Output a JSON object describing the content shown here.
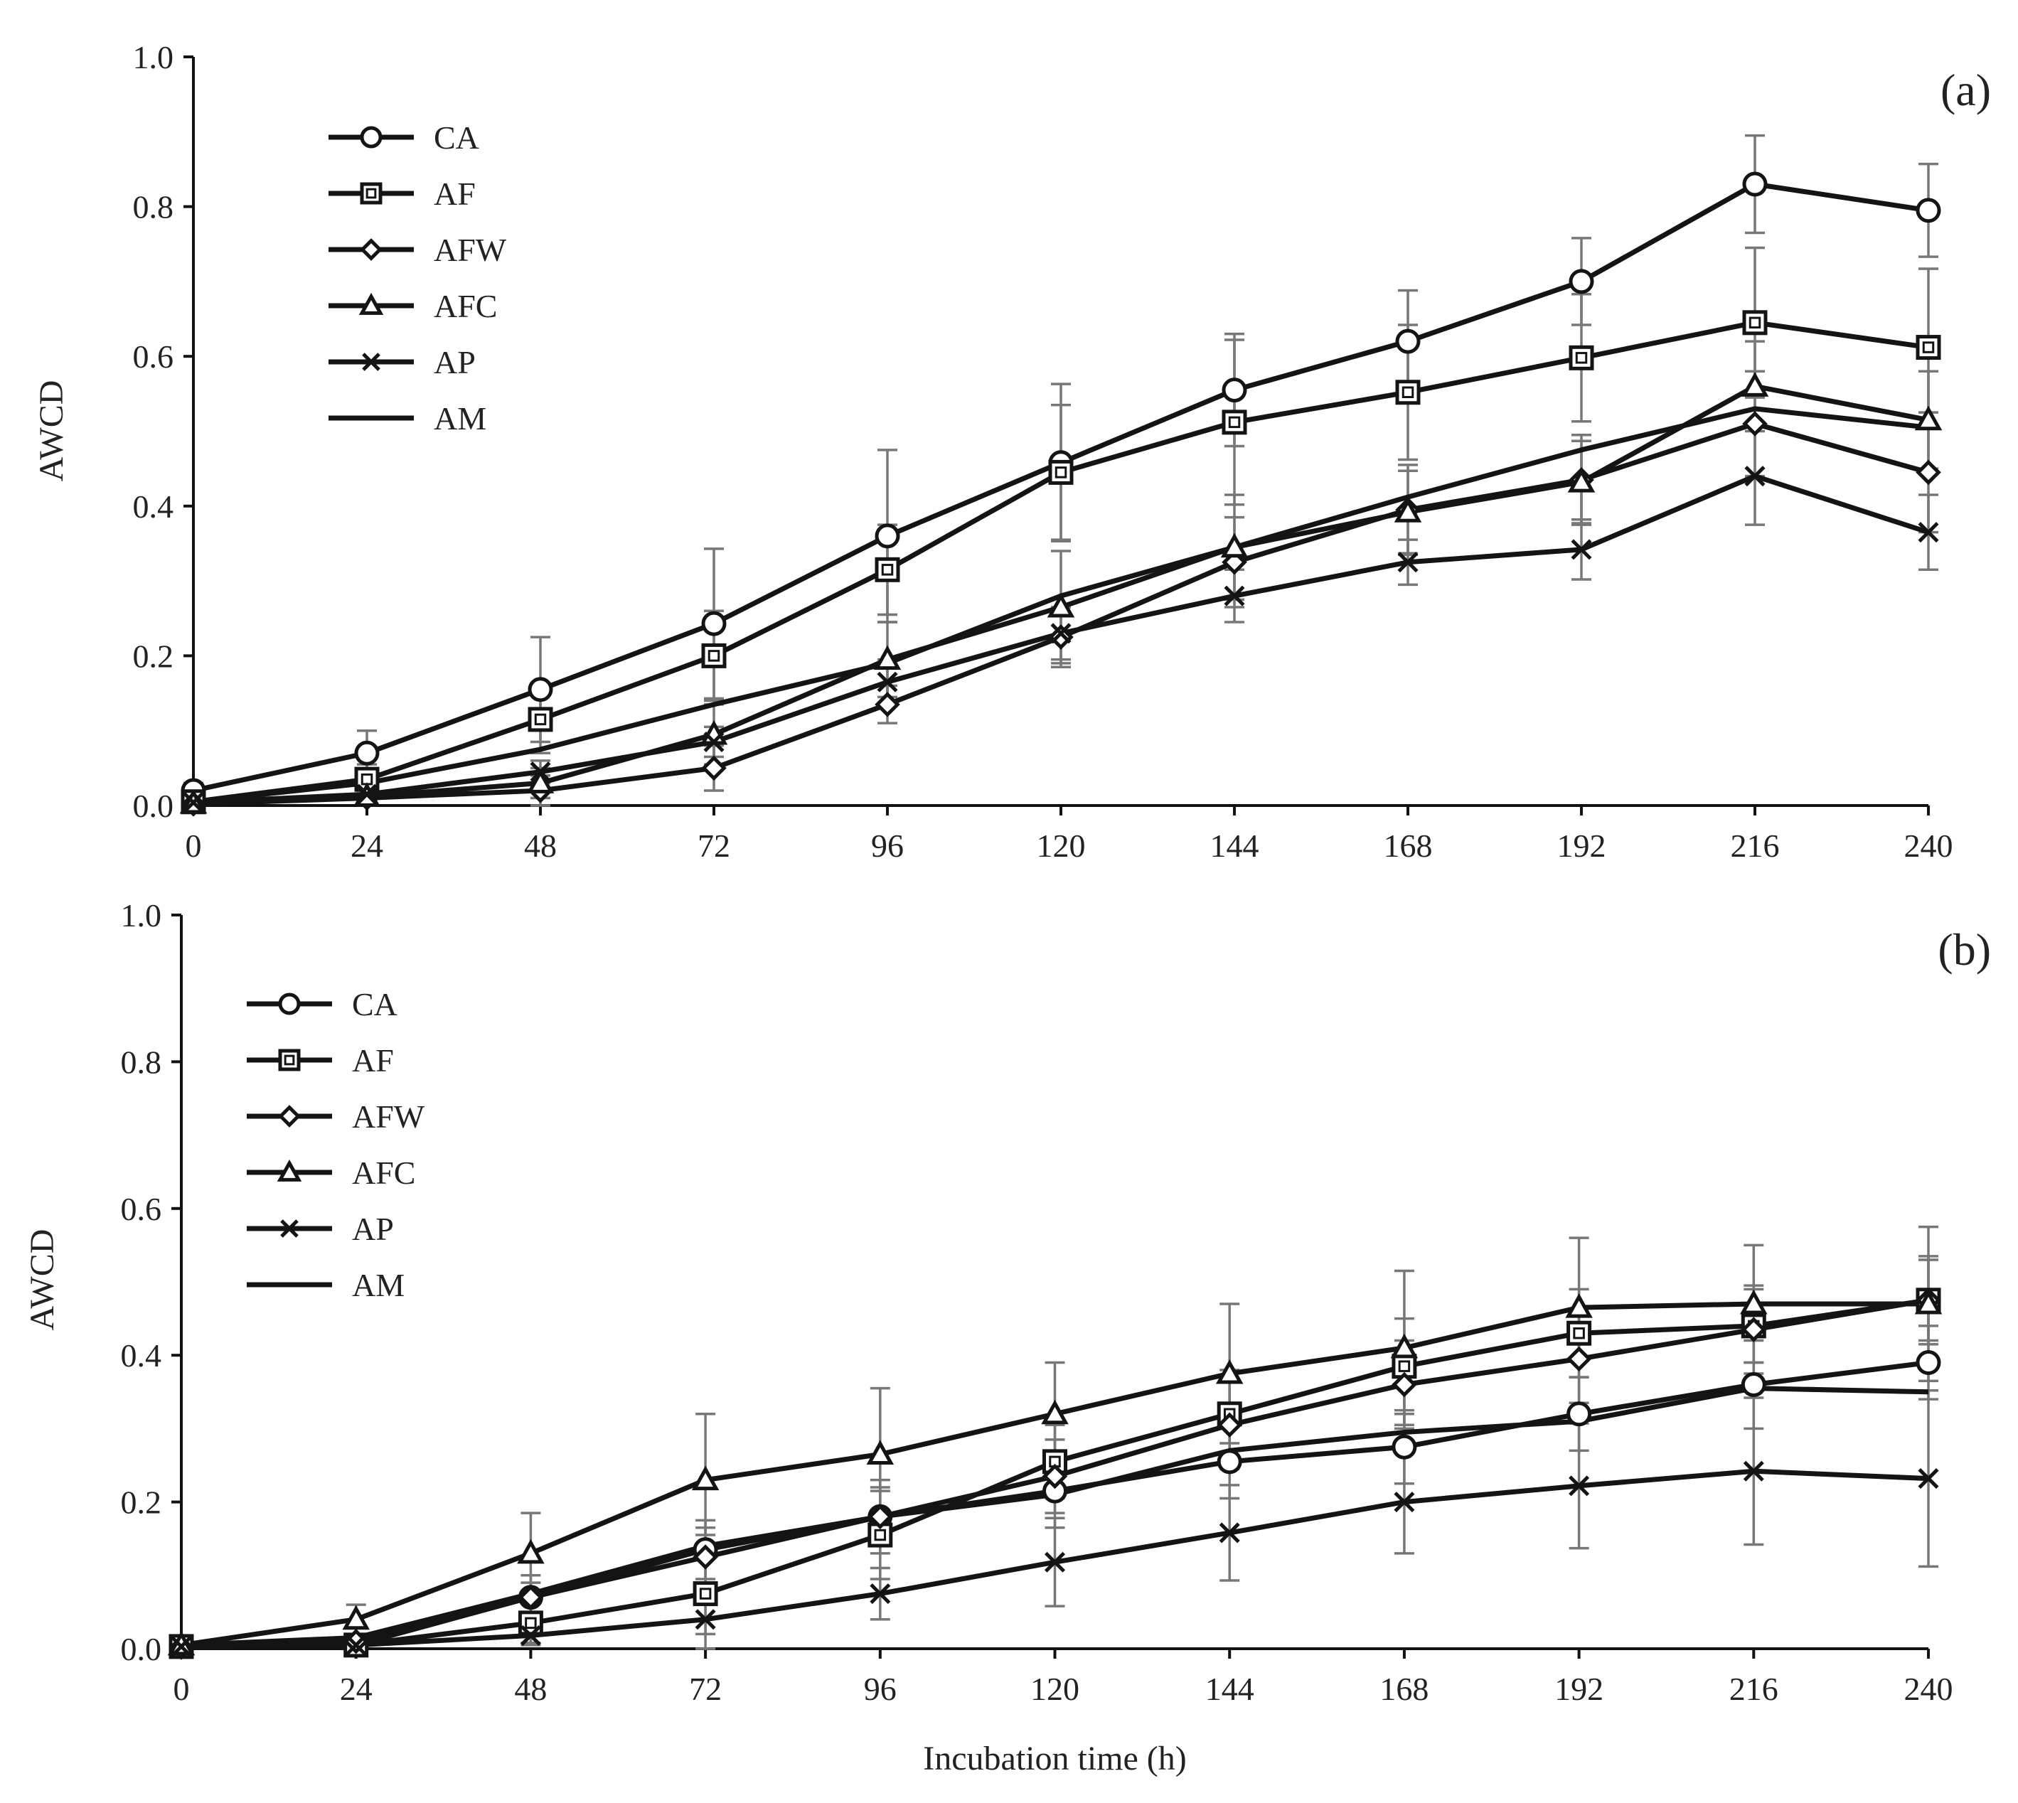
{
  "chart_data": [
    {
      "type": "line",
      "panel_label": "(a)",
      "ylabel": "AWCD",
      "xlabel": "",
      "ylim": [
        0.0,
        1.0
      ],
      "yticks": [
        "0.0",
        "0.2",
        "0.4",
        "0.6",
        "0.8",
        "1.0"
      ],
      "x": [
        0,
        24,
        48,
        72,
        96,
        120,
        144,
        168,
        192,
        216,
        240
      ],
      "xtick_labels": [
        "0",
        "24",
        "48",
        "72",
        "96",
        "120",
        "144",
        "168",
        "192",
        "216",
        "240"
      ],
      "legend_position": "top-left",
      "series": [
        {
          "name": "CA",
          "marker": "circle",
          "values": [
            0.02,
            0.07,
            0.155,
            0.243,
            0.36,
            0.458,
            0.555,
            0.62,
            0.7,
            0.83,
            0.795
          ],
          "errors": [
            0.01,
            0.03,
            0.07,
            0.1,
            0.115,
            0.105,
            0.075,
            0.068,
            0.058,
            0.065,
            0.062
          ]
        },
        {
          "name": "AF",
          "marker": "square",
          "values": [
            0.005,
            0.035,
            0.115,
            0.2,
            0.315,
            0.445,
            0.512,
            0.552,
            0.598,
            0.645,
            0.612
          ],
          "errors": [
            0.005,
            0.02,
            0.045,
            0.06,
            0.06,
            0.09,
            0.11,
            0.09,
            0.085,
            0.1,
            0.105
          ]
        },
        {
          "name": "AFW",
          "marker": "diamond",
          "values": [
            0.002,
            0.01,
            0.02,
            0.05,
            0.135,
            0.225,
            0.325,
            0.395,
            0.435,
            0.51,
            0.445
          ],
          "errors": [
            0.003,
            0.01,
            0.02,
            0.03,
            0.025,
            0.04,
            0.06,
            0.06,
            0.06,
            0.07,
            0.08
          ]
        },
        {
          "name": "AFC",
          "marker": "triangle",
          "values": [
            0.003,
            0.012,
            0.03,
            0.095,
            0.195,
            0.265,
            0.345,
            0.392,
            0.432,
            0.56,
            0.515
          ],
          "errors": [
            0.003,
            0.01,
            0.02,
            0.04,
            0.05,
            0.075,
            0.07,
            0.055,
            0.055,
            0.06,
            0.065
          ]
        },
        {
          "name": "AP",
          "marker": "x",
          "values": [
            0.004,
            0.015,
            0.045,
            0.085,
            0.165,
            0.23,
            0.28,
            0.325,
            0.342,
            0.44,
            0.365
          ],
          "errors": [
            0.003,
            0.01,
            0.015,
            0.02,
            0.03,
            0.035,
            0.035,
            0.03,
            0.04,
            0.065,
            0.05
          ]
        },
        {
          "name": "AM",
          "marker": "none",
          "values": [
            0.005,
            0.03,
            0.075,
            0.135,
            0.19,
            0.28,
            0.345,
            0.412,
            0.475,
            0.53,
            0.505
          ],
          "errors": []
        }
      ]
    },
    {
      "type": "line",
      "panel_label": "(b)",
      "ylabel": "AWCD",
      "xlabel": "Incubation time (h)",
      "ylim": [
        0.0,
        1.0
      ],
      "yticks": [
        "0.0",
        "0.2",
        "0.4",
        "0.6",
        "0.8",
        "1.0"
      ],
      "x": [
        0,
        24,
        48,
        72,
        96,
        120,
        144,
        168,
        192,
        216,
        240
      ],
      "xtick_labels": [
        "0",
        "24",
        "48",
        "72",
        "96",
        "120",
        "144",
        "168",
        "192",
        "216",
        "240"
      ],
      "legend_position": "top-left",
      "series": [
        {
          "name": "CA",
          "marker": "circle",
          "values": [
            0.003,
            0.005,
            0.07,
            0.135,
            0.18,
            0.215,
            0.255,
            0.275,
            0.32,
            0.36,
            0.39
          ],
          "errors": [
            0.003,
            0.005,
            0.02,
            0.04,
            0.04,
            0.05,
            0.05,
            0.05,
            0.05,
            0.06,
            0.05
          ]
        },
        {
          "name": "AF",
          "marker": "square",
          "values": [
            0.003,
            0.005,
            0.035,
            0.075,
            0.155,
            0.255,
            0.32,
            0.385,
            0.43,
            0.44,
            0.475
          ],
          "errors": [
            0.003,
            0.005,
            0.03,
            0.08,
            0.06,
            0.05,
            0.06,
            0.065,
            0.06,
            0.05,
            0.055
          ]
        },
        {
          "name": "AFW",
          "marker": "diamond",
          "values": [
            0.002,
            0.01,
            0.07,
            0.125,
            0.18,
            0.235,
            0.305,
            0.36,
            0.395,
            0.435,
            0.475
          ],
          "errors": [
            0.002,
            0.01,
            0.03,
            0.04,
            0.05,
            0.05,
            0.06,
            0.06,
            0.06,
            0.06,
            0.06
          ]
        },
        {
          "name": "AFC",
          "marker": "triangle",
          "values": [
            0.005,
            0.04,
            0.13,
            0.23,
            0.265,
            0.32,
            0.375,
            0.41,
            0.465,
            0.47,
            0.47
          ],
          "errors": [
            0.003,
            0.02,
            0.055,
            0.09,
            0.09,
            0.07,
            0.095,
            0.105,
            0.095,
            0.08,
            0.105
          ]
        },
        {
          "name": "AP",
          "marker": "x",
          "values": [
            0.003,
            0.005,
            0.018,
            0.04,
            0.075,
            0.118,
            0.158,
            0.2,
            0.222,
            0.242,
            0.232
          ],
          "errors": [
            0.003,
            0.005,
            0.01,
            0.02,
            0.035,
            0.06,
            0.065,
            0.07,
            0.085,
            0.1,
            0.12
          ]
        },
        {
          "name": "AM",
          "marker": "none",
          "values": [
            0.005,
            0.015,
            0.075,
            0.14,
            0.18,
            0.21,
            0.27,
            0.295,
            0.31,
            0.355,
            0.35
          ],
          "errors": []
        }
      ]
    }
  ]
}
